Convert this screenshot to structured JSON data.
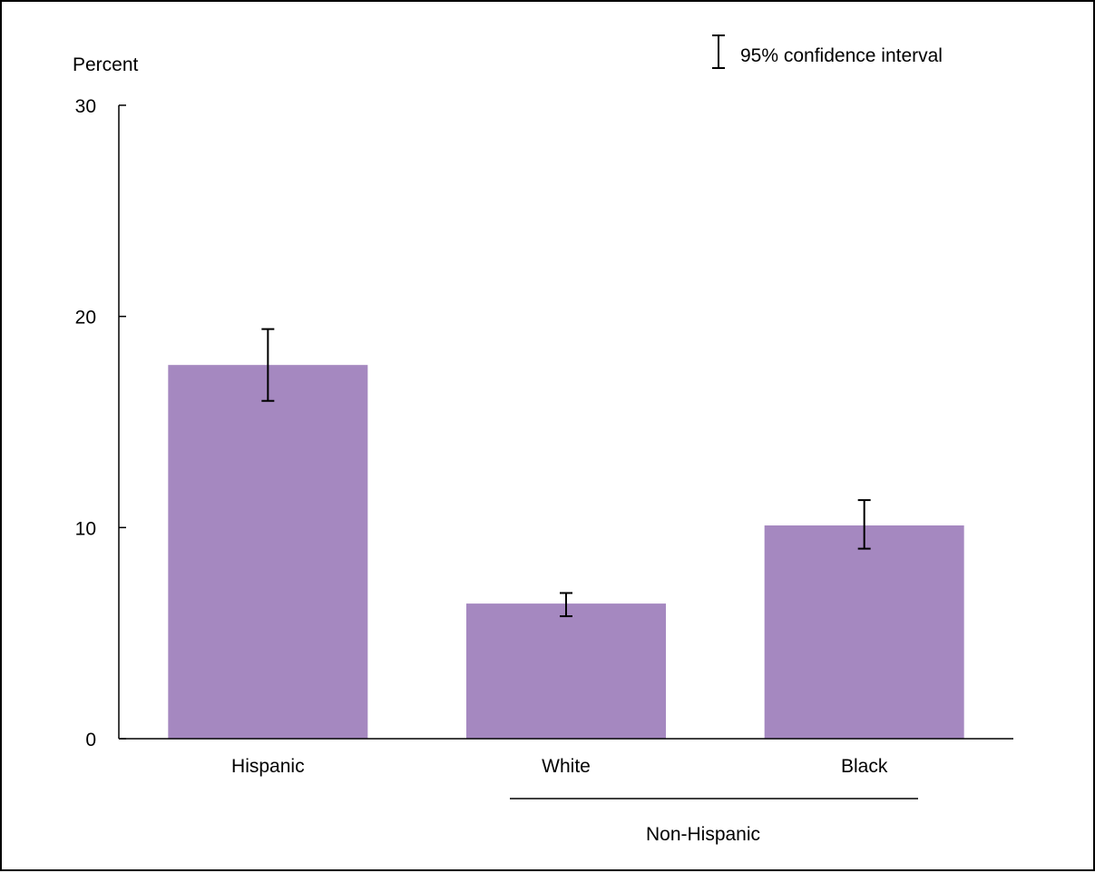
{
  "chart_data": {
    "type": "bar",
    "ylabel": "Percent",
    "ylim": [
      0,
      30
    ],
    "yticks": [
      0,
      10,
      20,
      30
    ],
    "categories": [
      "Hispanic",
      "White",
      "Black"
    ],
    "values": [
      17.7,
      6.4,
      10.1
    ],
    "ci_lower": [
      16.0,
      5.8,
      9.0
    ],
    "ci_upper": [
      19.4,
      6.9,
      11.3
    ],
    "group_label": "Non-Hispanic",
    "legend_label": "95% confidence interval",
    "legend_position": "top-right",
    "grid": false,
    "colors": {
      "bar": "#a588c0",
      "axis": "#000000"
    }
  }
}
